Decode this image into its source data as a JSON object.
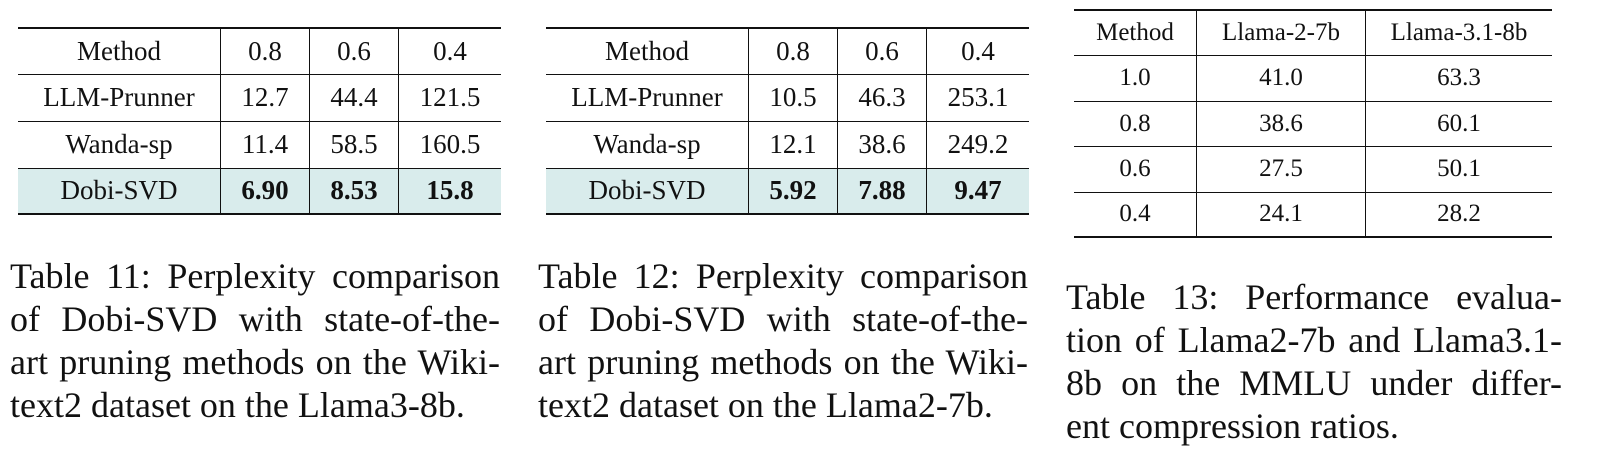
{
  "table11": {
    "headers": [
      "Method",
      "0.8",
      "0.6",
      "0.4"
    ],
    "rows": [
      {
        "method": "LLM-Prunner",
        "v08": "12.7",
        "v06": "44.4",
        "v04": "121.5"
      },
      {
        "method": "Wanda-sp",
        "v08": "11.4",
        "v06": "58.5",
        "v04": "160.5"
      },
      {
        "method": "Dobi-SVD",
        "v08": "6.90",
        "v06": "8.53",
        "v04": "15.8"
      }
    ],
    "caption_lines": [
      "Table 11: Perplexity comparison",
      "of Dobi-SVD with state-of-the-",
      "art pruning methods on the Wiki-",
      "text2 dataset on the Llama3-8b."
    ]
  },
  "table12": {
    "headers": [
      "Method",
      "0.8",
      "0.6",
      "0.4"
    ],
    "rows": [
      {
        "method": "LLM-Prunner",
        "v08": "10.5",
        "v06": "46.3",
        "v04": "253.1"
      },
      {
        "method": "Wanda-sp",
        "v08": "12.1",
        "v06": "38.6",
        "v04": "249.2"
      },
      {
        "method": "Dobi-SVD",
        "v08": "5.92",
        "v06": "7.88",
        "v04": "9.47"
      }
    ],
    "caption_lines": [
      "Table 12: Perplexity comparison",
      "of Dobi-SVD with state-of-the-",
      "art pruning methods on the Wiki-",
      "text2 dataset on the Llama2-7b."
    ]
  },
  "table13": {
    "headers": [
      "Method",
      "Llama-2-7b",
      "Llama-3.1-8b"
    ],
    "rows": [
      {
        "method": "1.0",
        "a": "41.0",
        "b": "63.3"
      },
      {
        "method": "0.8",
        "a": "38.6",
        "b": "60.1"
      },
      {
        "method": "0.6",
        "a": "27.5",
        "b": "50.1"
      },
      {
        "method": "0.4",
        "a": "24.1",
        "b": "28.2"
      }
    ],
    "caption_lines": [
      "Table 13: Performance evalua-",
      "tion of Llama2-7b and Llama3.1-",
      "8b on the MMLU under differ-",
      "ent compression ratios."
    ]
  },
  "colors": {
    "highlight_row": "#d9ecec",
    "text": "#111111"
  }
}
